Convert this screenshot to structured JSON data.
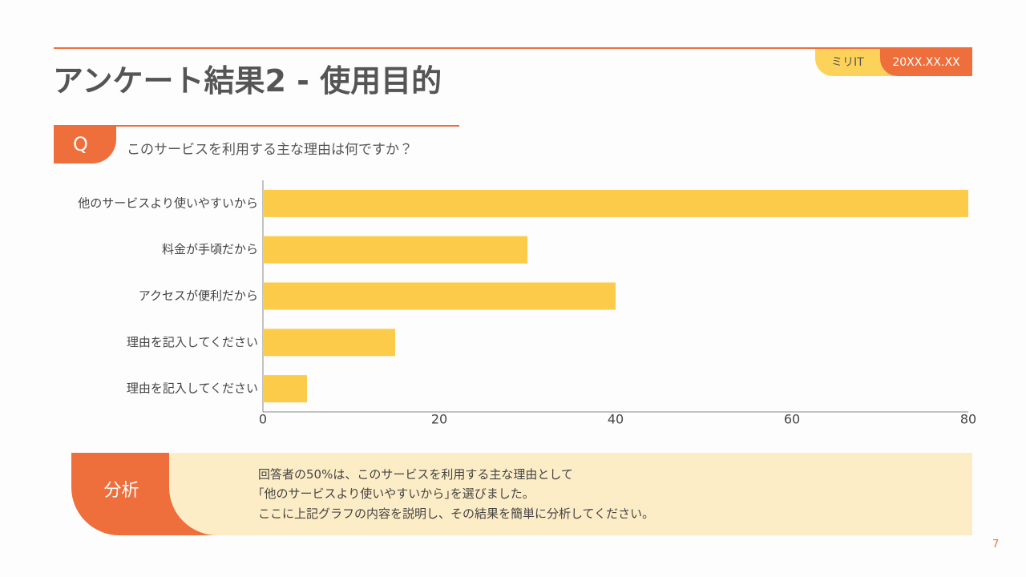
{
  "header": {
    "title": "アンケート結果2 - 使用目的",
    "tag": "ミリIT",
    "date": "20XX.XX.XX"
  },
  "question": {
    "label": "Q",
    "text": "このサービスを利用する主な理由は何ですか？"
  },
  "chart_data": {
    "type": "hbar",
    "categories": [
      "他のサービスより使いやすいから",
      "料金が手頃だから",
      "アクセスが便利だから",
      "理由を記入してください",
      "理由を記入してください"
    ],
    "values": [
      80,
      30,
      40,
      15,
      5
    ],
    "color": "#fccb4a",
    "xlim": [
      0,
      80
    ],
    "xticks": [
      0,
      20,
      40,
      60,
      80
    ],
    "grid": false
  },
  "analysis": {
    "label": "分析",
    "lines": [
      "回答者の50%は、このサービスを利用する主な理由として",
      "｢他のサービスより使いやすいから｣を選びました。",
      "ここに上記グラフの内容を説明し、その結果を簡単に分析してください。"
    ]
  },
  "page_number": "7"
}
